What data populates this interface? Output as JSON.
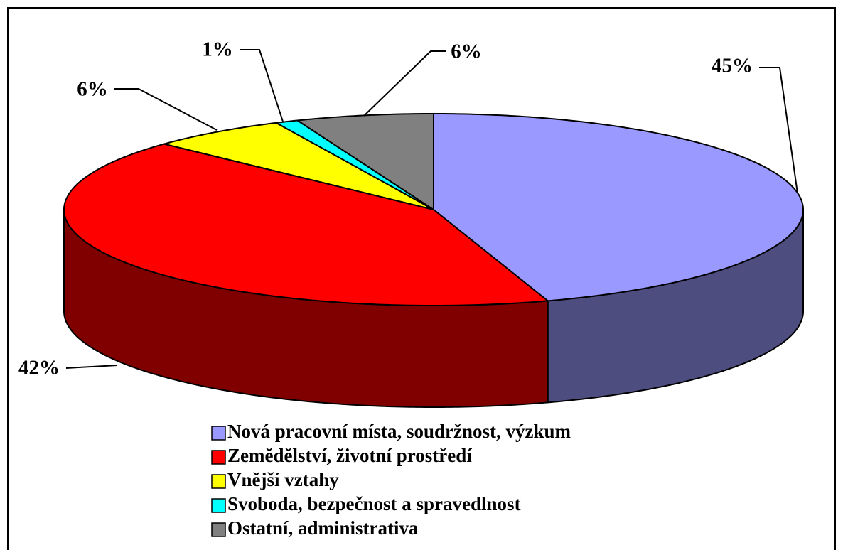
{
  "chart_data": {
    "type": "pie",
    "three_d": true,
    "categories": [
      "Nová pracovní místa, soudržnost, výzkum",
      "Zemědělství, životní prostředí",
      "Vnější vztahy",
      "Svoboda, bezpečnost a spravedlnost",
      "Ostatní, administrativa"
    ],
    "values": [
      45,
      42,
      6,
      1,
      6
    ],
    "value_labels": [
      "45%",
      "42%",
      "6%",
      "1%",
      "6%"
    ],
    "colors": [
      "#9999ff",
      "#ff0000",
      "#ffff00",
      "#00ffff",
      "#808080"
    ],
    "legend": "bottom"
  }
}
